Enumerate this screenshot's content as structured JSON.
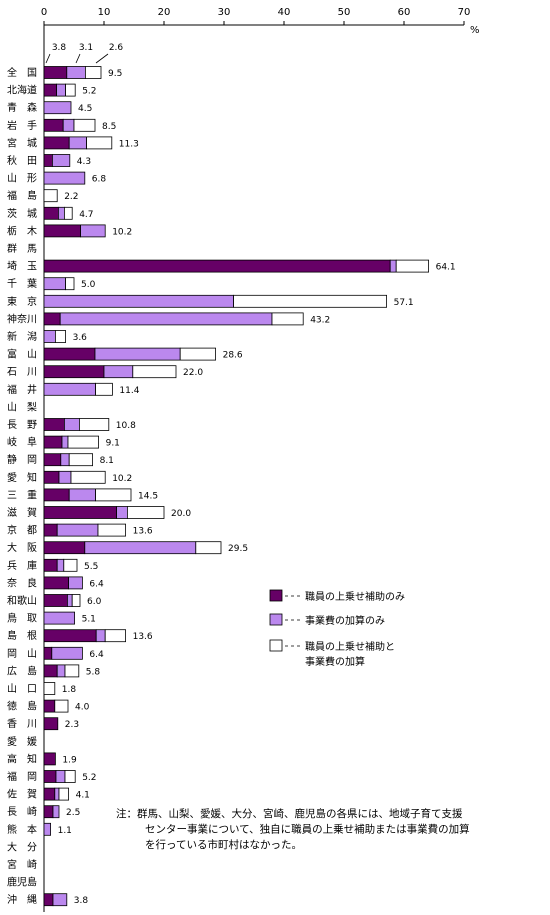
{
  "chart_data": {
    "type": "bar",
    "orientation": "horizontal",
    "stacked": true,
    "unit": "%",
    "xlim": [
      0,
      70
    ],
    "xticks": [
      "0",
      "10",
      "20",
      "30",
      "40",
      "50",
      "60",
      "70"
    ],
    "grid": false,
    "legend_position": "right-middle",
    "categories": [
      "全　国",
      "北海道",
      "青　森",
      "岩　手",
      "宮　城",
      "秋　田",
      "山　形",
      "福　島",
      "茨　城",
      "栃　木",
      "群　馬",
      "埼　玉",
      "千　葉",
      "東　京",
      "神奈川",
      "新　潟",
      "富　山",
      "石　川",
      "福　井",
      "山　梨",
      "長　野",
      "岐　阜",
      "静　岡",
      "愛　知",
      "三　重",
      "滋　賀",
      "京　都",
      "大　阪",
      "兵　庫",
      "奈　良",
      "和歌山",
      "鳥　取",
      "島　根",
      "岡　山",
      "広　島",
      "山　口",
      "徳　島",
      "香　川",
      "愛　媛",
      "高　知",
      "福　岡",
      "佐　賀",
      "長　崎",
      "熊　本",
      "大　分",
      "宮　崎",
      "鹿児島",
      "沖　縄"
    ],
    "series": [
      {
        "name": "職員の上乗せ補助のみ",
        "color": "#660066",
        "values": [
          3.8,
          2.1,
          0,
          3.2,
          4.2,
          1.4,
          0,
          0,
          2.4,
          6.1,
          0,
          57.7,
          0,
          0,
          2.7,
          0,
          8.5,
          10.0,
          0,
          0,
          3.4,
          3.0,
          2.8,
          2.5,
          4.2,
          12.1,
          2.2,
          6.8,
          2.2,
          4.1,
          3.9,
          0,
          8.7,
          1.3,
          2.2,
          0,
          1.8,
          2.3,
          0,
          1.9,
          2.0,
          1.8,
          1.5,
          0,
          0,
          0,
          0,
          1.5
        ]
      },
      {
        "name": "事業費の加算のみ",
        "color": "#bb88ee",
        "values": [
          3.1,
          1.5,
          4.5,
          1.8,
          2.9,
          2.9,
          6.8,
          0,
          1.0,
          4.1,
          0,
          1.0,
          3.6,
          31.6,
          35.3,
          1.9,
          14.2,
          4.8,
          8.6,
          0,
          2.5,
          1.0,
          1.4,
          2.0,
          4.4,
          1.8,
          6.8,
          18.5,
          1.1,
          2.3,
          0.8,
          5.1,
          1.5,
          5.1,
          1.3,
          0,
          0,
          0,
          0,
          0,
          1.5,
          0.7,
          1.0,
          1.1,
          0,
          0,
          0,
          2.3
        ]
      },
      {
        "name": "職員の上乗せ補助と事業費の加算",
        "color": "#ffffff",
        "values": [
          2.6,
          1.6,
          0,
          3.5,
          4.2,
          0,
          0,
          2.2,
          1.3,
          0,
          0,
          5.4,
          1.4,
          25.5,
          5.2,
          1.7,
          5.9,
          7.2,
          2.8,
          0,
          4.9,
          5.1,
          3.9,
          5.7,
          5.9,
          6.1,
          4.6,
          4.2,
          2.2,
          0,
          1.3,
          0,
          3.4,
          0,
          2.3,
          1.8,
          2.2,
          0,
          0,
          0,
          1.7,
          1.6,
          0,
          0,
          0,
          0,
          0,
          0
        ]
      }
    ],
    "totals": [
      "9.5",
      "5.2",
      "4.5",
      "8.5",
      "11.3",
      "4.3",
      "6.8",
      "2.2",
      "4.7",
      "10.2",
      "",
      "64.1",
      "5.0",
      "57.1",
      "43.2",
      "3.6",
      "28.6",
      "22.0",
      "11.4",
      "",
      "10.8",
      "9.1",
      "8.1",
      "10.2",
      "14.5",
      "20.0",
      "13.6",
      "29.5",
      "5.5",
      "6.4",
      "6.0",
      "5.1",
      "13.6",
      "6.4",
      "5.8",
      "1.8",
      "4.0",
      "2.3",
      "",
      "1.9",
      "5.2",
      "4.1",
      "2.5",
      "1.1",
      "",
      "",
      "",
      "3.8"
    ],
    "top_row_segment_labels": [
      "3.8",
      "3.1",
      "2.6"
    ]
  },
  "legend": [
    {
      "label_lines": [
        "職員の上乗せ補助のみ"
      ]
    },
    {
      "label_lines": [
        "事業費の加算のみ"
      ]
    },
    {
      "label_lines": [
        "職員の上乗せ補助と",
        "事業費の加算"
      ]
    }
  ],
  "note": {
    "lines": [
      "注：群馬、山梨、愛媛、大分、宮崎、鹿児島の各県には、地域子育て支援",
      "センター事業について、独自に職員の上乗せ補助または事業費の加算",
      "を行っている市町村はなかった。"
    ]
  }
}
